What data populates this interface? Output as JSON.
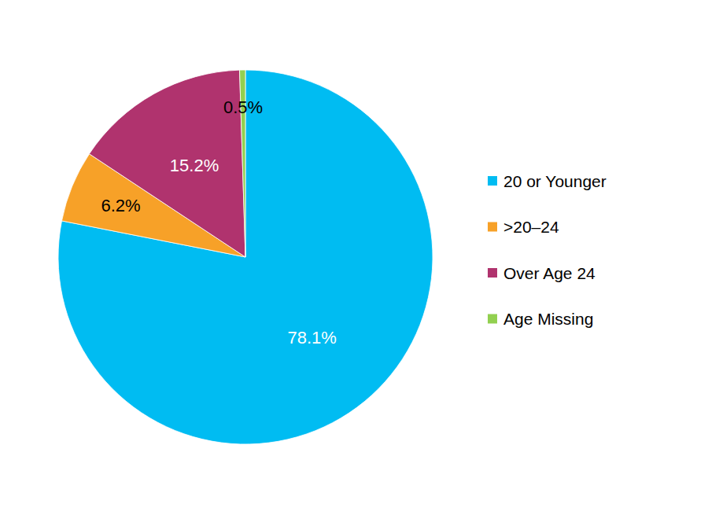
{
  "chart_data": {
    "type": "pie",
    "categories": [
      "20 or Younger",
      ">20–24",
      "Over Age 24",
      "Age Missing"
    ],
    "values": [
      78.1,
      6.2,
      15.2,
      0.5
    ],
    "value_labels": [
      "78.1%",
      "6.2%",
      "15.2%",
      "0.5%"
    ],
    "colors": [
      "#00bcf2",
      "#f7a128",
      "#b0336e",
      "#92d050"
    ],
    "legend": "right",
    "data_labels": true
  }
}
